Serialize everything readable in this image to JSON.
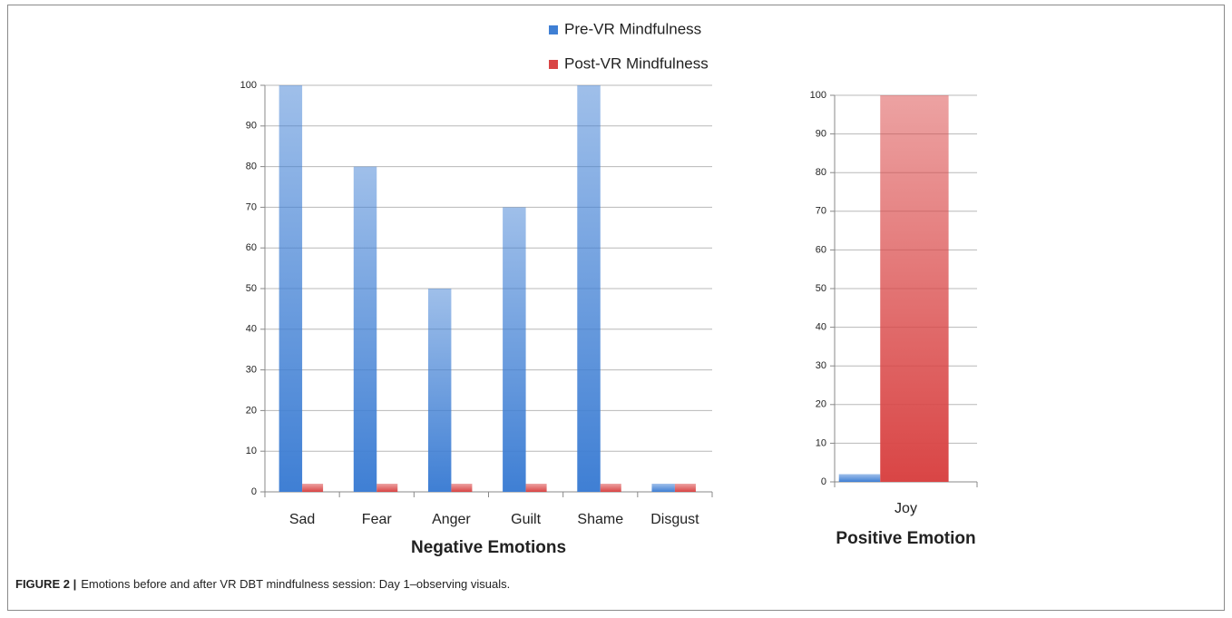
{
  "chart_data": [
    {
      "type": "bar",
      "xlabel": "Negative Emotions",
      "categories": [
        "Sad",
        "Fear",
        "Anger",
        "Guilt",
        "Shame",
        "Disgust"
      ],
      "series": [
        {
          "name": "Pre-VR Mindfulness",
          "color": "#3f7fd4",
          "values": [
            100,
            80,
            50,
            70,
            100,
            2
          ]
        },
        {
          "name": "Post-VR Mindfulness",
          "color": "#d94545",
          "values": [
            2,
            2,
            2,
            2,
            2,
            2
          ]
        }
      ],
      "ylim": [
        0,
        100
      ],
      "yticks": [
        0,
        10,
        20,
        30,
        40,
        50,
        60,
        70,
        80,
        90,
        100
      ],
      "grid": true,
      "legend": "top"
    },
    {
      "type": "bar",
      "xlabel": "Positive Emotion",
      "categories": [
        "Joy"
      ],
      "series": [
        {
          "color": "#3f7fd4",
          "values": [
            2
          ]
        },
        {
          "color": "#d94545",
          "values": [
            100
          ]
        }
      ],
      "ylim": [
        0,
        100
      ],
      "yticks": [
        0,
        10,
        20,
        30,
        40,
        50,
        60,
        70,
        80,
        90,
        100
      ],
      "grid": true
    }
  ],
  "caption": {
    "label": "FIGURE 2 |",
    "text": "Emotions before and after VR DBT mindfulness session: Day 1–observing visuals."
  }
}
